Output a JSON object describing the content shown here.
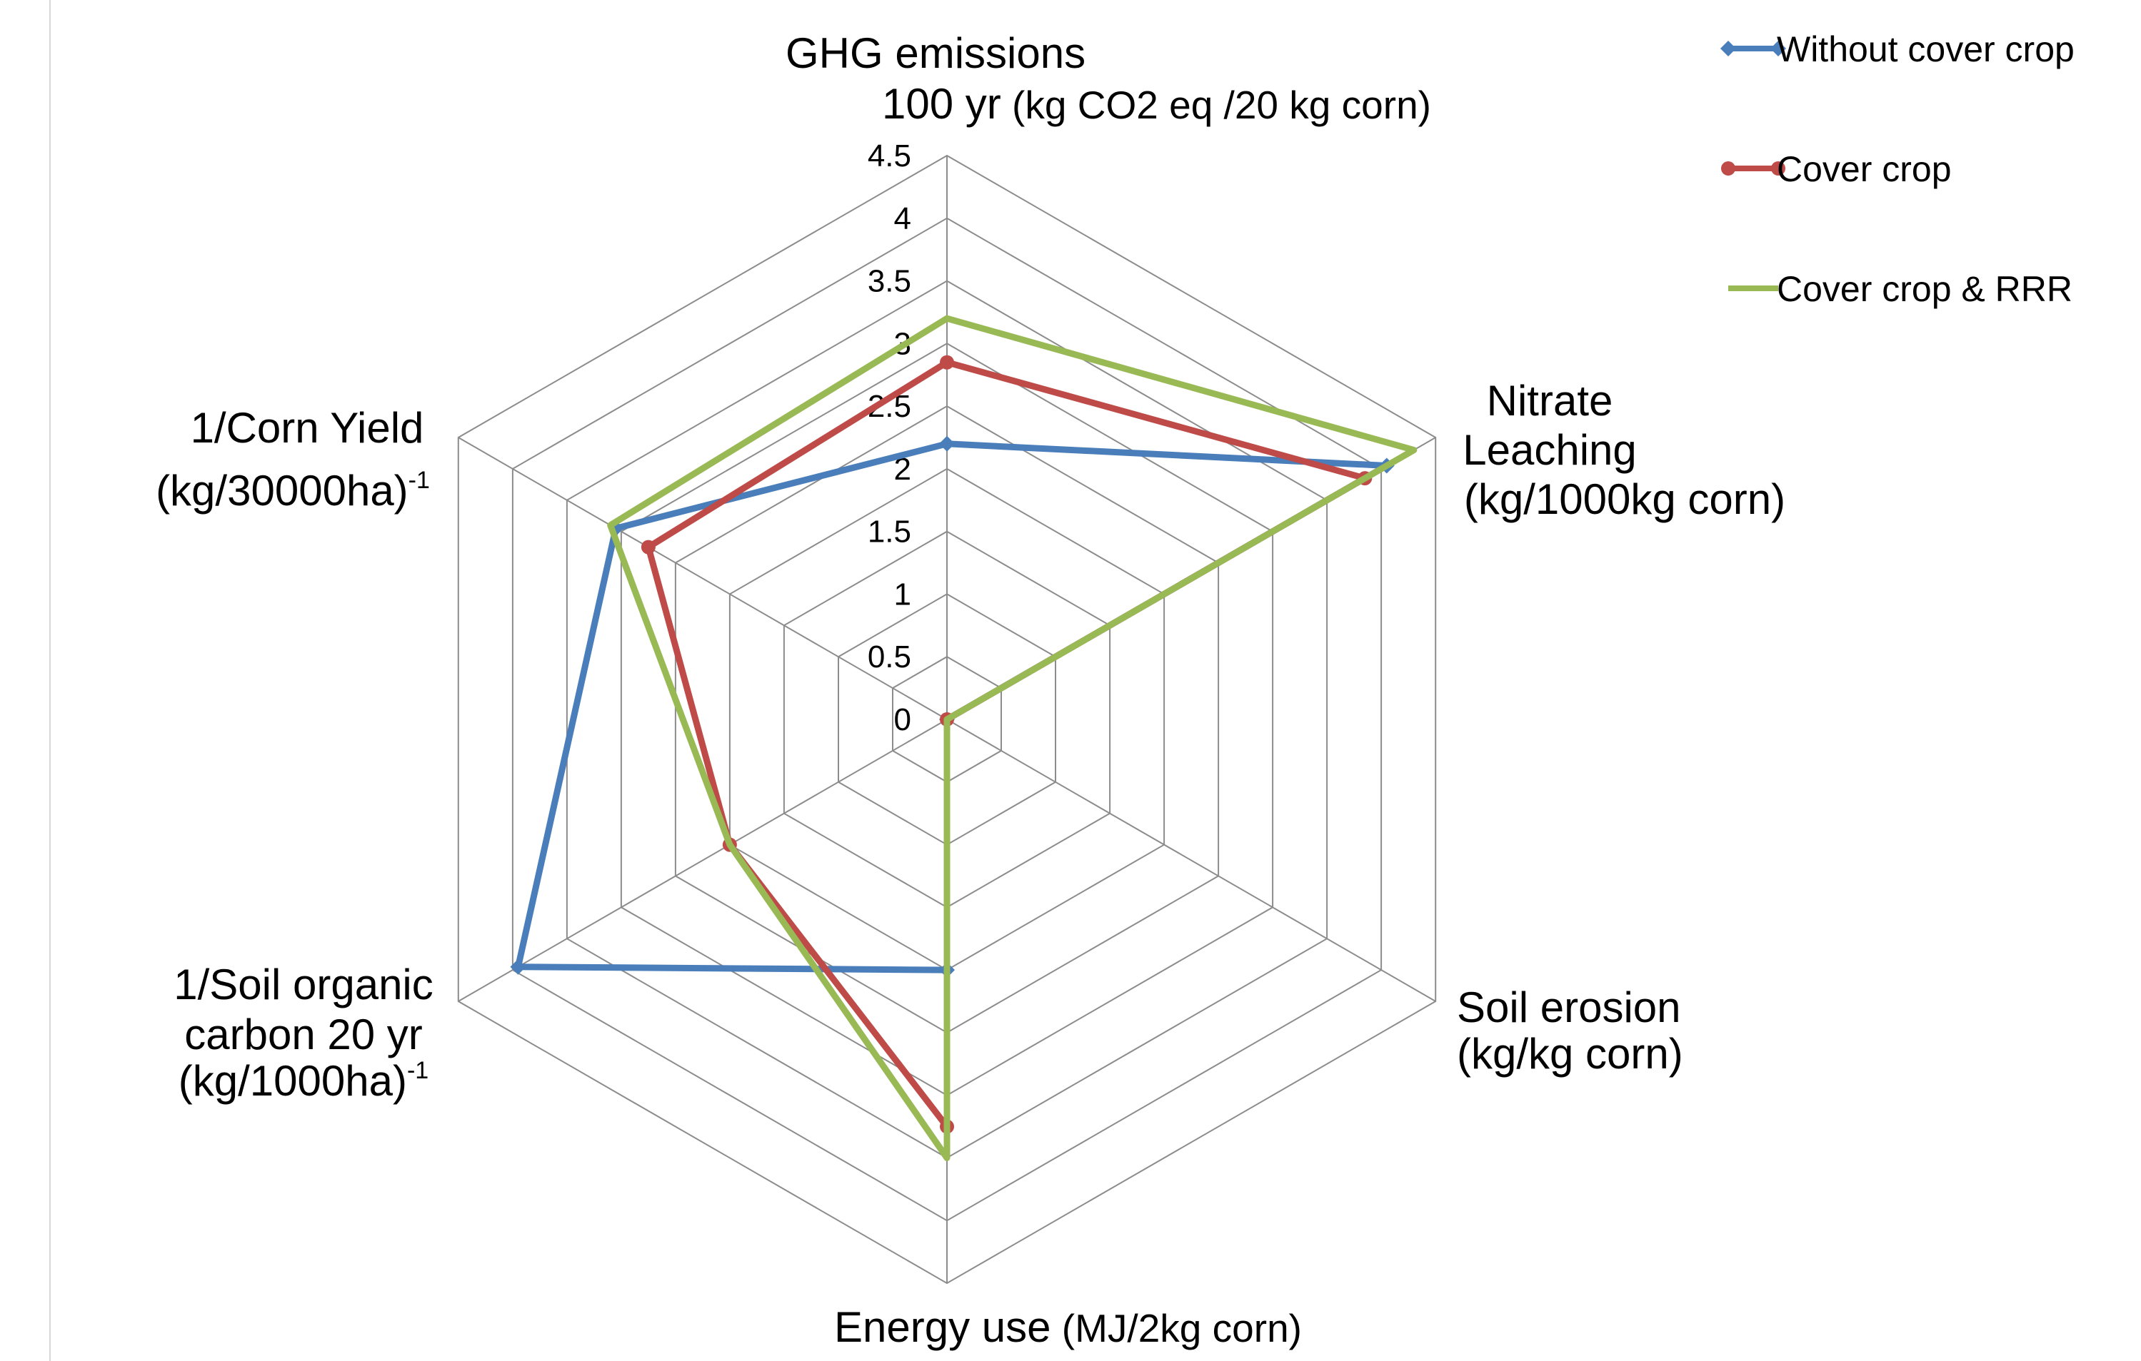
{
  "chart_data": {
    "type": "radar",
    "axes": [
      {
        "lines": [
          {
            "parts": [
              {
                "text": "GHG emissions",
                "cls": "axis-label"
              }
            ]
          },
          {
            "parts": [
              {
                "text": "100 yr",
                "cls": "axis-label"
              },
              {
                "text": " (kg CO2 eq /20 kg corn)",
                "cls": "axis-label-small"
              }
            ]
          }
        ]
      },
      {
        "lines": [
          {
            "parts": [
              {
                "text": "Nitrate",
                "cls": "axis-label"
              }
            ]
          },
          {
            "parts": [
              {
                "text": "Leaching",
                "cls": "axis-label"
              }
            ]
          },
          {
            "parts": [
              {
                "text": "(kg/1000kg corn)",
                "cls": "axis-label"
              }
            ]
          }
        ]
      },
      {
        "lines": [
          {
            "parts": [
              {
                "text": "Soil erosion",
                "cls": "axis-label"
              }
            ]
          },
          {
            "parts": [
              {
                "text": "(kg/kg corn)",
                "cls": "axis-label"
              }
            ]
          }
        ]
      },
      {
        "lines": [
          {
            "parts": [
              {
                "text": "Energy use",
                "cls": "axis-label"
              },
              {
                "text": " (MJ/2kg corn)",
                "cls": "axis-label-small"
              }
            ]
          }
        ]
      },
      {
        "lines": [
          {
            "parts": [
              {
                "text": "1/Soil organic",
                "cls": "axis-label"
              }
            ]
          },
          {
            "parts": [
              {
                "text": "carbon 20 yr",
                "cls": "axis-label"
              }
            ]
          },
          {
            "parts": [
              {
                "text": "(kg/1000ha)",
                "cls": "axis-label"
              },
              {
                "text": "-1",
                "cls": "sup"
              }
            ]
          }
        ]
      },
      {
        "lines": [
          {
            "parts": [
              {
                "text": "1/Corn Yield",
                "cls": "axis-label"
              }
            ]
          },
          {
            "parts": [
              {
                "text": "(kg/30000ha)",
                "cls": "axis-label"
              },
              {
                "text": "-1",
                "cls": "sup"
              }
            ]
          }
        ]
      }
    ],
    "r_ticks": [
      "0",
      "0.5",
      "1",
      "1.5",
      "2",
      "2.5",
      "3",
      "3.5",
      "4",
      "4.5"
    ],
    "rlim": [
      0,
      4.5
    ],
    "grid": true,
    "legend_position": "top-right",
    "series": [
      {
        "name": "Without cover crop",
        "color": "#4a7ebb",
        "marker": "diamond",
        "values": [
          2.2,
          4.05,
          0,
          2.0,
          3.95,
          3.05
        ]
      },
      {
        "name": "Cover crop",
        "color": "#be4b48",
        "marker": "circle",
        "values": [
          2.85,
          3.85,
          0,
          3.25,
          2.0,
          2.75
        ]
      },
      {
        "name": "Cover crop & RRR",
        "color": "#98b954",
        "marker": "none",
        "values": [
          3.2,
          4.3,
          0,
          3.5,
          2.0,
          3.1
        ]
      }
    ]
  }
}
